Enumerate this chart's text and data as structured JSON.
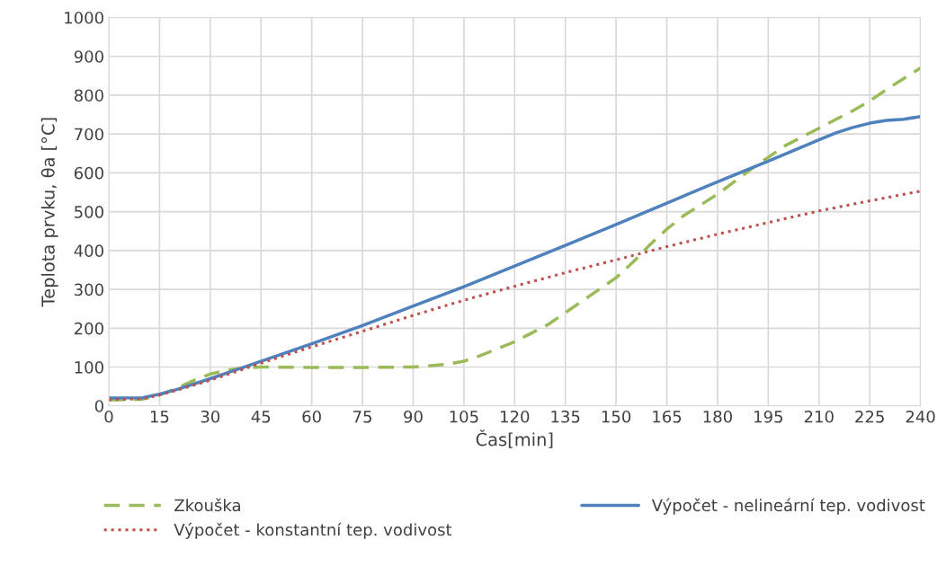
{
  "chart_data": {
    "type": "line",
    "xlabel": "Čas[min]",
    "ylabel": "Teplota prvku, θa [°C]",
    "xlim": [
      0,
      240
    ],
    "xticks": [
      0,
      15,
      30,
      45,
      60,
      75,
      90,
      105,
      120,
      135,
      150,
      165,
      180,
      195,
      210,
      225,
      240
    ],
    "ylim": [
      0,
      1000
    ],
    "yticks": [
      0,
      100,
      200,
      300,
      400,
      500,
      600,
      700,
      800,
      900,
      1000
    ],
    "grid": true,
    "legend": "bottom",
    "series": [
      {
        "name": "Zkouška",
        "color": "#9bbb59",
        "line_style": "dashed",
        "x": [
          0,
          10,
          15,
          20,
          25,
          30,
          35,
          40,
          45,
          60,
          75,
          90,
          100,
          105,
          110,
          120,
          130,
          135,
          140,
          150,
          155,
          160,
          165,
          170,
          180,
          190,
          195,
          200,
          210,
          220,
          225,
          230,
          240
        ],
        "values": [
          15,
          17,
          28,
          45,
          65,
          82,
          92,
          98,
          100,
          99,
          99,
          100,
          107,
          115,
          130,
          165,
          210,
          240,
          270,
          330,
          370,
          415,
          455,
          490,
          545,
          610,
          640,
          670,
          715,
          760,
          785,
          815,
          870
        ]
      },
      {
        "name": "Výpočet - nelineární tep. vodivost",
        "color": "#4f81bd",
        "line_style": "solid",
        "x": [
          0,
          10,
          15,
          20,
          30,
          40,
          45,
          60,
          75,
          90,
          105,
          120,
          135,
          150,
          165,
          180,
          195,
          210,
          215,
          220,
          225,
          230,
          235,
          240
        ],
        "values": [
          20,
          21,
          30,
          42,
          70,
          100,
          115,
          160,
          207,
          257,
          307,
          360,
          413,
          467,
          522,
          577,
          630,
          685,
          703,
          717,
          728,
          735,
          738,
          745
        ]
      },
      {
        "name": "Výpočet - konstantní tep. vodivost",
        "color": "#c0504d",
        "line_style": "dotted",
        "x": [
          0,
          10,
          15,
          20,
          30,
          45,
          60,
          75,
          90,
          105,
          120,
          135,
          150,
          165,
          180,
          195,
          210,
          225,
          240
        ],
        "values": [
          16,
          18,
          28,
          40,
          66,
          110,
          152,
          192,
          233,
          272,
          308,
          343,
          376,
          410,
          442,
          472,
          502,
          528,
          553
        ]
      }
    ]
  }
}
